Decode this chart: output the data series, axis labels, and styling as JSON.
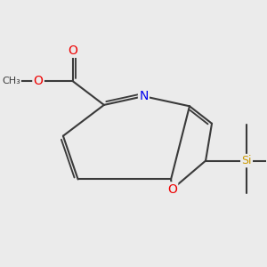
{
  "bg_color": "#ebebeb",
  "bond_color": "#3a3a3a",
  "bond_width": 1.5,
  "atom_colors": {
    "N": "#0000ee",
    "O": "#ee0000",
    "Si": "#cc9900",
    "C": "#3a3a3a"
  },
  "font_size": 9,
  "figsize": [
    3.0,
    3.0
  ],
  "dpi": 100,
  "xlim": [
    -2.8,
    3.5
  ],
  "ylim": [
    -2.2,
    2.5
  ]
}
